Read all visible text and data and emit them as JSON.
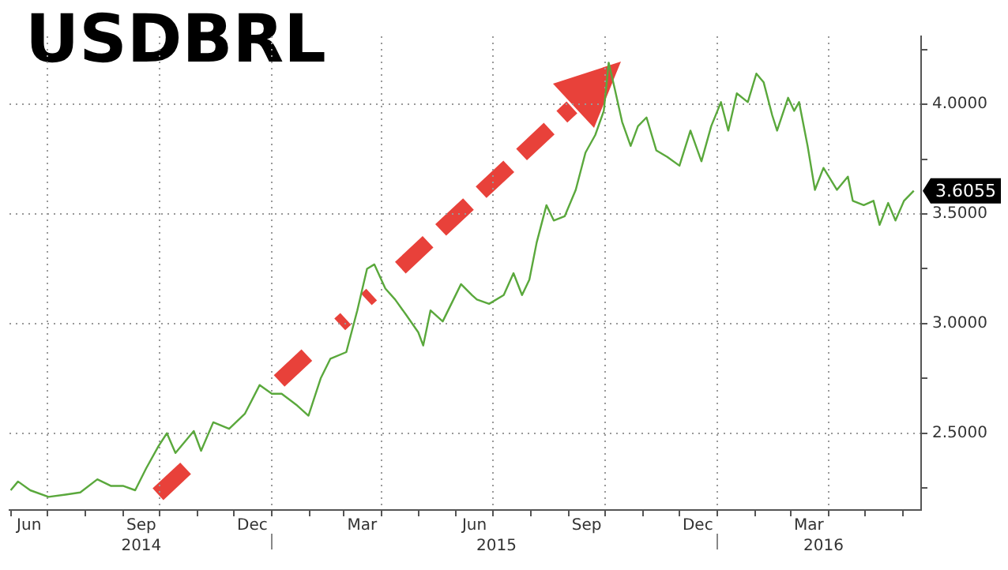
{
  "chart_data": {
    "type": "line",
    "title": "USDBRL",
    "series": [
      {
        "color": "#5aa83c",
        "x": [
          "2014-06-01",
          "2014-06-07",
          "2014-06-17",
          "2014-07-02",
          "2014-07-16",
          "2014-07-28",
          "2014-08-11",
          "2014-08-22",
          "2014-09-01",
          "2014-09-11",
          "2014-09-20",
          "2014-09-30",
          "2014-10-07",
          "2014-10-14",
          "2014-10-29",
          "2014-11-04",
          "2014-11-14",
          "2014-11-27",
          "2014-12-10",
          "2014-12-22",
          "2015-01-01",
          "2015-01-09",
          "2015-01-21",
          "2015-01-31",
          "2015-02-10",
          "2015-02-18",
          "2015-03-03",
          "2015-03-12",
          "2015-03-20",
          "2015-03-26",
          "2015-04-04",
          "2015-04-12",
          "2015-04-21",
          "2015-05-01",
          "2015-05-05",
          "2015-05-11",
          "2015-05-21",
          "2015-06-05",
          "2015-06-14",
          "2015-06-18",
          "2015-06-28",
          "2015-07-10",
          "2015-07-18",
          "2015-07-25",
          "2015-07-31",
          "2015-08-06",
          "2015-08-14",
          "2015-08-20",
          "2015-08-29",
          "2015-09-07",
          "2015-09-15",
          "2015-09-23",
          "2015-09-30",
          "2015-10-04",
          "2015-10-09",
          "2015-10-15",
          "2015-10-22",
          "2015-10-28",
          "2015-11-04",
          "2015-11-12",
          "2015-11-21",
          "2015-12-01",
          "2015-12-10",
          "2015-12-19",
          "2015-12-27",
          "2016-01-04",
          "2016-01-10",
          "2016-01-17",
          "2016-01-26",
          "2016-02-02",
          "2016-02-08",
          "2016-02-15",
          "2016-02-19",
          "2016-02-28",
          "2016-03-04",
          "2016-03-08",
          "2016-03-15",
          "2016-03-21",
          "2016-03-28",
          "2016-04-08",
          "2016-04-17",
          "2016-04-21",
          "2016-04-30",
          "2016-05-08",
          "2016-05-13",
          "2016-05-20",
          "2016-05-26",
          "2016-06-02",
          "2016-06-10"
        ],
        "values": [
          2.24,
          2.28,
          2.24,
          2.21,
          2.22,
          2.23,
          2.29,
          2.26,
          2.26,
          2.24,
          2.34,
          2.44,
          2.5,
          2.41,
          2.51,
          2.42,
          2.55,
          2.52,
          2.59,
          2.72,
          2.68,
          2.68,
          2.63,
          2.58,
          2.75,
          2.84,
          2.87,
          3.06,
          3.25,
          3.27,
          3.16,
          3.11,
          3.04,
          2.96,
          2.9,
          3.06,
          3.01,
          3.18,
          3.13,
          3.11,
          3.09,
          3.13,
          3.23,
          3.13,
          3.2,
          3.37,
          3.54,
          3.47,
          3.49,
          3.61,
          3.78,
          3.86,
          3.97,
          4.19,
          4.07,
          3.92,
          3.81,
          3.9,
          3.94,
          3.79,
          3.76,
          3.72,
          3.88,
          3.74,
          3.9,
          4.01,
          3.88,
          4.05,
          4.01,
          4.14,
          4.1,
          3.95,
          3.88,
          4.03,
          3.97,
          4.01,
          3.81,
          3.61,
          3.71,
          3.61,
          3.67,
          3.56,
          3.54,
          3.56,
          3.45,
          3.55,
          3.47,
          3.56,
          3.6055
        ]
      }
    ],
    "xlim": [
      "2014-05-31",
      "2016-06-16"
    ],
    "xticks": [
      {
        "value": "2014-06-01",
        "label": null
      },
      {
        "value": "2014-06-16",
        "label": "Jun"
      },
      {
        "value": "2014-07-01",
        "label": null
      },
      {
        "value": "2014-08-01",
        "label": null
      },
      {
        "value": "2014-09-01",
        "label": null
      },
      {
        "value": "2014-09-16",
        "label": "Sep"
      },
      {
        "value": "2014-10-01",
        "label": null
      },
      {
        "value": "2014-11-01",
        "label": null
      },
      {
        "value": "2014-12-01",
        "label": null
      },
      {
        "value": "2014-12-16",
        "label": "Dec"
      },
      {
        "value": "2015-01-01",
        "label": null
      },
      {
        "value": "2015-02-01",
        "label": null
      },
      {
        "value": "2015-03-01",
        "label": null
      },
      {
        "value": "2015-03-16",
        "label": "Mar"
      },
      {
        "value": "2015-04-01",
        "label": null
      },
      {
        "value": "2015-05-01",
        "label": null
      },
      {
        "value": "2015-06-01",
        "label": null
      },
      {
        "value": "2015-06-16",
        "label": "Jun"
      },
      {
        "value": "2015-07-01",
        "label": null
      },
      {
        "value": "2015-08-01",
        "label": null
      },
      {
        "value": "2015-09-01",
        "label": null
      },
      {
        "value": "2015-09-16",
        "label": "Sep"
      },
      {
        "value": "2015-10-01",
        "label": null
      },
      {
        "value": "2015-11-01",
        "label": null
      },
      {
        "value": "2015-12-01",
        "label": null
      },
      {
        "value": "2015-12-16",
        "label": "Dec"
      },
      {
        "value": "2016-01-01",
        "label": null
      },
      {
        "value": "2016-02-01",
        "label": null
      },
      {
        "value": "2016-03-01",
        "label": null
      },
      {
        "value": "2016-03-16",
        "label": "Mar"
      },
      {
        "value": "2016-04-01",
        "label": null
      },
      {
        "value": "2016-05-01",
        "label": null
      },
      {
        "value": "2016-06-01",
        "label": null
      }
    ],
    "x2lim": [
      "2014-05-31",
      "2016-06-16"
    ],
    "x2ticks": [
      {
        "value": "2014-09-16",
        "label": "2014"
      },
      {
        "value": "2015-01-01",
        "label": null
      },
      {
        "value": "2015-07-04",
        "label": "2015"
      },
      {
        "value": "2016-01-01",
        "label": null
      },
      {
        "value": "2016-03-28",
        "label": "2016"
      }
    ],
    "ylim": [
      2.15,
      4.31
    ],
    "yticks": [
      {
        "value": 2.25,
        "label": null
      },
      {
        "value": 2.5,
        "label": "2.5000"
      },
      {
        "value": 2.75,
        "label": null
      },
      {
        "value": 3,
        "label": "3.0000"
      },
      {
        "value": 3.25,
        "label": null
      },
      {
        "value": 3.5,
        "label": "3.5000"
      },
      {
        "value": 3.75,
        "label": null
      },
      {
        "value": 4,
        "label": "4.0000"
      },
      {
        "value": 4.25,
        "label": null
      }
    ],
    "annotations": [
      {
        "text": "3.6055",
        "x": "2016-06-10",
        "y": 3.6055
      }
    ],
    "grid": true,
    "legend": false,
    "marker": "none",
    "line_style": "solid"
  }
}
